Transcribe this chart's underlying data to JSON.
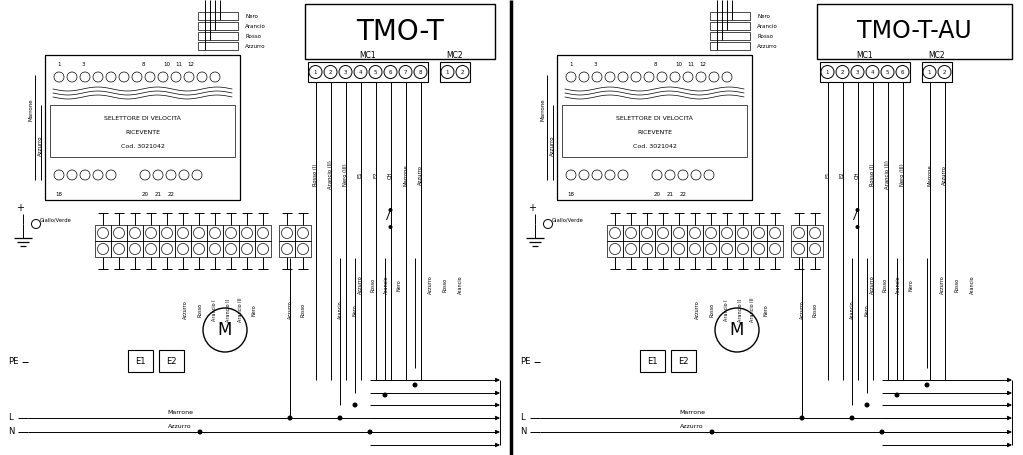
{
  "bg_color": "#ffffff",
  "lc": "#000000",
  "fig_width": 10.23,
  "fig_height": 4.55,
  "dpi": 100,
  "left": {
    "title": "TMO-T",
    "ox": 0,
    "mc1_pins": [
      "1",
      "2",
      "3",
      "4",
      "5",
      "6",
      "7",
      "8"
    ],
    "mc2_pins": [
      "1",
      "2"
    ],
    "top_labels": [
      "Azzurro",
      "Rosso",
      "Arancio",
      "Nero"
    ],
    "rv_labels": [
      "Rosso (I)",
      "Arancio (II)",
      "Nero (III)",
      "E1",
      "E2",
      "CH",
      "Marrone",
      "Azzurro"
    ],
    "sel_text": [
      "SELETTORE DI VELOCITÀ",
      "RICEVENTE",
      "Cod. 3021042"
    ],
    "top_nums": [
      "1",
      "3",
      "8",
      "10",
      "11",
      "12"
    ],
    "bot_nums": [
      "18",
      "20",
      "21",
      "22"
    ],
    "vert_labels": [
      "Azzurro",
      "Rosso",
      "Arancio I",
      "Arancio II",
      "Arancio III",
      "Nero",
      "Azzurro",
      "Rosso",
      "Arancio",
      "Nero"
    ]
  },
  "right": {
    "title": "TMO-T-AU",
    "ox": 512,
    "mc1_pins": [
      "1",
      "2",
      "3",
      "4",
      "5",
      "6"
    ],
    "mc2_pins": [
      "1",
      "2"
    ],
    "top_labels": [
      "Azzurro",
      "Rosso",
      "Arancio",
      "Nero"
    ],
    "rv_labels": [
      "E1",
      "E2",
      "CH",
      "Rosso (I)",
      "Arancio (II)",
      "Nero (III)",
      "Marrone",
      "Azzurro"
    ],
    "sel_text": [
      "SELETTORE DI VELOCITÀ",
      "RICEVENTE",
      "Cod. 3021042"
    ],
    "top_nums": [
      "1",
      "3",
      "8",
      "10",
      "11",
      "12"
    ],
    "bot_nums": [
      "18",
      "20",
      "21",
      "22"
    ],
    "vert_labels": [
      "Azzurro",
      "Rosso",
      "Arancio I",
      "Arancio II",
      "Arancio III",
      "Nero",
      "Azzurro",
      "Rosso",
      "Arancio",
      "Nero"
    ]
  }
}
